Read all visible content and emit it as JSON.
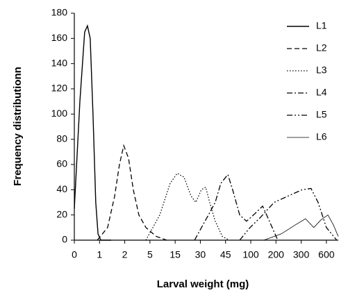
{
  "chart_data": {
    "type": "line",
    "xlabel": "Larval weight (mg)",
    "ylabel": "Frequency distributionn",
    "xlim": [
      0,
      10.5
    ],
    "ylim": [
      0,
      180
    ],
    "xticks": [
      0,
      1,
      2,
      {
        "value": 3,
        "label": "5"
      },
      {
        "value": 4,
        "label": "15"
      },
      {
        "value": 5,
        "label": "30"
      },
      {
        "value": 6,
        "label": "45"
      },
      {
        "value": 7,
        "label": "100"
      },
      {
        "value": 8,
        "label": "200"
      },
      {
        "value": 9,
        "label": "300"
      },
      {
        "value": 10,
        "label": "600"
      }
    ],
    "yticks": [
      0,
      20,
      40,
      60,
      80,
      100,
      120,
      140,
      160,
      180
    ],
    "legend": "upper right",
    "series": [
      {
        "name": "L1",
        "color": "#000000",
        "dash": "solid",
        "width": 1.4,
        "x": [
          0,
          0.22,
          0.41,
          0.52,
          0.63,
          0.74,
          0.85,
          0.94,
          1.05,
          1.46
        ],
        "values": [
          25,
          110,
          165,
          170,
          160,
          100,
          30,
          5,
          0,
          0
        ]
      },
      {
        "name": "L2",
        "color": "#000000",
        "dash": "dashed",
        "width": 1.3,
        "x": [
          0.91,
          1.32,
          1.6,
          1.79,
          1.96,
          2.15,
          2.34,
          2.56,
          2.84,
          3.25,
          3.66
        ],
        "values": [
          0,
          10,
          35,
          60,
          75,
          65,
          40,
          20,
          10,
          3,
          0
        ]
      },
      {
        "name": "L3",
        "color": "#000000",
        "dash": "dotted",
        "width": 1.3,
        "x": [
          2.84,
          3.39,
          3.8,
          4.08,
          4.35,
          4.63,
          4.82,
          5.04,
          5.21,
          5.37,
          5.59,
          5.87,
          6.14
        ],
        "values": [
          0,
          20,
          45,
          53,
          50,
          35,
          30,
          40,
          42,
          30,
          15,
          3,
          0
        ]
      },
      {
        "name": "L4",
        "color": "#000000",
        "dash": "dashdot",
        "width": 1.3,
        "x": [
          4.77,
          5.32,
          5.59,
          5.81,
          6.09,
          6.28,
          6.56,
          6.83,
          7.11,
          7.47,
          7.74,
          8.07
        ],
        "values": [
          0,
          20,
          30,
          45,
          52,
          40,
          20,
          15,
          20,
          27,
          15,
          0
        ]
      },
      {
        "name": "L5",
        "color": "#000000",
        "dash": "dashdotdot",
        "width": 1.3,
        "x": [
          6.56,
          6.97,
          7.38,
          7.93,
          8.48,
          9.04,
          9.39,
          9.67,
          10.0,
          10.41
        ],
        "values": [
          0,
          10,
          18,
          30,
          35,
          40,
          41,
          30,
          10,
          0
        ]
      },
      {
        "name": "L6",
        "color": "#000000",
        "dash": "solid",
        "width": 0.8,
        "x": [
          7.52,
          8.21,
          8.76,
          9.17,
          9.5,
          9.78,
          10.06,
          10.28,
          10.47
        ],
        "values": [
          0,
          5,
          12,
          17,
          10,
          16,
          20,
          12,
          3
        ]
      }
    ]
  }
}
